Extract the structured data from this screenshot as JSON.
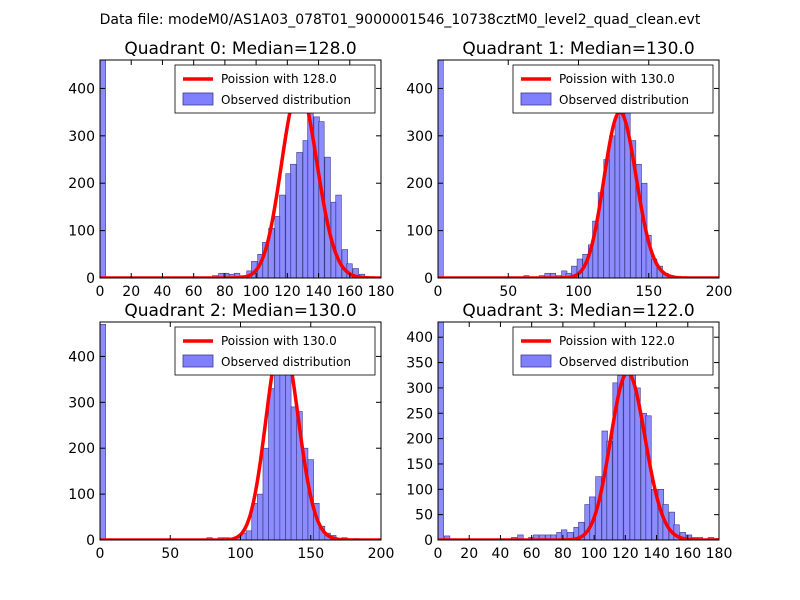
{
  "suptitle": "Data file: modeM0/AS1A03_078T01_9000001546_10738cztM0_level2_quad_clean.evt",
  "colors": {
    "bar_fill": "#8080ff",
    "bar_edge": "#3a3a8a",
    "poisson_line": "#ff0000",
    "axes": "#000000",
    "background": "#ffffff"
  },
  "chart_data": [
    {
      "type": "bar",
      "title": "Quadrant 0: Median=128.0",
      "xlim": [
        0,
        180
      ],
      "ylim": [
        0,
        460
      ],
      "xticks": [
        0,
        20,
        40,
        60,
        80,
        100,
        120,
        140,
        160,
        180
      ],
      "yticks": [
        0,
        100,
        200,
        300,
        400
      ],
      "grid": false,
      "legend_placement": "top-right",
      "bin_width": 3.6,
      "bins": [
        [
          0,
          460
        ],
        [
          72,
          5
        ],
        [
          76,
          10
        ],
        [
          79,
          10
        ],
        [
          83,
          8
        ],
        [
          86,
          10
        ],
        [
          90,
          5
        ],
        [
          94,
          15
        ],
        [
          97,
          35
        ],
        [
          101,
          50
        ],
        [
          104,
          75
        ],
        [
          108,
          105
        ],
        [
          112,
          130
        ],
        [
          115,
          175
        ],
        [
          119,
          220
        ],
        [
          122,
          240
        ],
        [
          126,
          265
        ],
        [
          130,
          290
        ],
        [
          133,
          400
        ],
        [
          137,
          340
        ],
        [
          140,
          330
        ],
        [
          144,
          255
        ],
        [
          148,
          160
        ],
        [
          151,
          175
        ],
        [
          155,
          60
        ],
        [
          158,
          30
        ],
        [
          162,
          20
        ],
        [
          166,
          8
        ],
        [
          169,
          3
        ]
      ],
      "series": [
        {
          "name": "Poission with 128.0",
          "kind": "line",
          "mean": 128.0
        },
        {
          "name": "Observed distribution",
          "kind": "bar"
        }
      ]
    },
    {
      "type": "bar",
      "title": "Quadrant 1: Median=130.0",
      "xlim": [
        0,
        200
      ],
      "ylim": [
        0,
        460
      ],
      "xticks": [
        0,
        50,
        100,
        150,
        200
      ],
      "yticks": [
        0,
        100,
        200,
        300,
        400
      ],
      "grid": false,
      "legend_placement": "top-right",
      "bin_width": 3.8,
      "bins": [
        [
          0,
          460
        ],
        [
          61,
          5
        ],
        [
          72,
          5
        ],
        [
          76,
          10
        ],
        [
          80,
          10
        ],
        [
          84,
          5
        ],
        [
          88,
          15
        ],
        [
          91,
          10
        ],
        [
          95,
          25
        ],
        [
          99,
          40
        ],
        [
          103,
          50
        ],
        [
          107,
          70
        ],
        [
          110,
          120
        ],
        [
          114,
          180
        ],
        [
          118,
          250
        ],
        [
          122,
          300
        ],
        [
          126,
          340
        ],
        [
          129,
          350
        ],
        [
          133,
          350
        ],
        [
          137,
          290
        ],
        [
          141,
          240
        ],
        [
          145,
          200
        ],
        [
          148,
          90
        ],
        [
          152,
          40
        ],
        [
          156,
          25
        ],
        [
          160,
          10
        ],
        [
          164,
          5
        ]
      ],
      "series": [
        {
          "name": "Poission with 130.0",
          "kind": "line",
          "mean": 130.0
        },
        {
          "name": "Observed distribution",
          "kind": "bar"
        }
      ]
    },
    {
      "type": "bar",
      "title": "Quadrant 2: Median=130.0",
      "xlim": [
        0,
        200
      ],
      "ylim": [
        0,
        475
      ],
      "xticks": [
        0,
        50,
        100,
        150,
        200
      ],
      "yticks": [
        0,
        100,
        200,
        300,
        400
      ],
      "grid": false,
      "legend_placement": "top-right",
      "bin_width": 4.0,
      "bins": [
        [
          0,
          470
        ],
        [
          76,
          5
        ],
        [
          84,
          5
        ],
        [
          88,
          5
        ],
        [
          96,
          5
        ],
        [
          100,
          15
        ],
        [
          104,
          20
        ],
        [
          108,
          80
        ],
        [
          112,
          100
        ],
        [
          116,
          200
        ],
        [
          120,
          330
        ],
        [
          124,
          400
        ],
        [
          128,
          440
        ],
        [
          132,
          410
        ],
        [
          136,
          290
        ],
        [
          140,
          280
        ],
        [
          144,
          200
        ],
        [
          148,
          175
        ],
        [
          152,
          80
        ],
        [
          156,
          30
        ],
        [
          160,
          15
        ],
        [
          164,
          10
        ],
        [
          172,
          5
        ],
        [
          180,
          3
        ]
      ],
      "series": [
        {
          "name": "Poission with 130.0",
          "kind": "line",
          "mean": 130.0
        },
        {
          "name": "Observed distribution",
          "kind": "bar"
        }
      ]
    },
    {
      "type": "bar",
      "title": "Quadrant 3: Median=122.0",
      "xlim": [
        0,
        180
      ],
      "ylim": [
        0,
        430
      ],
      "xticks": [
        0,
        20,
        40,
        60,
        80,
        100,
        120,
        140,
        160,
        180
      ],
      "yticks": [
        0,
        50,
        100,
        150,
        200,
        250,
        300,
        350,
        400
      ],
      "grid": false,
      "legend_placement": "top-right",
      "bin_width": 3.6,
      "bins": [
        [
          0,
          430
        ],
        [
          4,
          8
        ],
        [
          47,
          5
        ],
        [
          51,
          10
        ],
        [
          58,
          5
        ],
        [
          61,
          10
        ],
        [
          65,
          10
        ],
        [
          69,
          10
        ],
        [
          72,
          10
        ],
        [
          76,
          15
        ],
        [
          79,
          20
        ],
        [
          83,
          15
        ],
        [
          87,
          25
        ],
        [
          90,
          35
        ],
        [
          94,
          70
        ],
        [
          97,
          85
        ],
        [
          101,
          125
        ],
        [
          105,
          215
        ],
        [
          108,
          195
        ],
        [
          112,
          310
        ],
        [
          115,
          325
        ],
        [
          119,
          325
        ],
        [
          123,
          330
        ],
        [
          126,
          300
        ],
        [
          130,
          250
        ],
        [
          133,
          245
        ],
        [
          137,
          100
        ],
        [
          141,
          100
        ],
        [
          144,
          70
        ],
        [
          148,
          55
        ],
        [
          151,
          30
        ],
        [
          155,
          15
        ],
        [
          159,
          10
        ],
        [
          162,
          5
        ],
        [
          166,
          5
        ],
        [
          173,
          5
        ],
        [
          177,
          3
        ]
      ],
      "series": [
        {
          "name": "Poission with 122.0",
          "kind": "line",
          "mean": 122.0
        },
        {
          "name": "Observed distribution",
          "kind": "bar"
        }
      ]
    }
  ]
}
